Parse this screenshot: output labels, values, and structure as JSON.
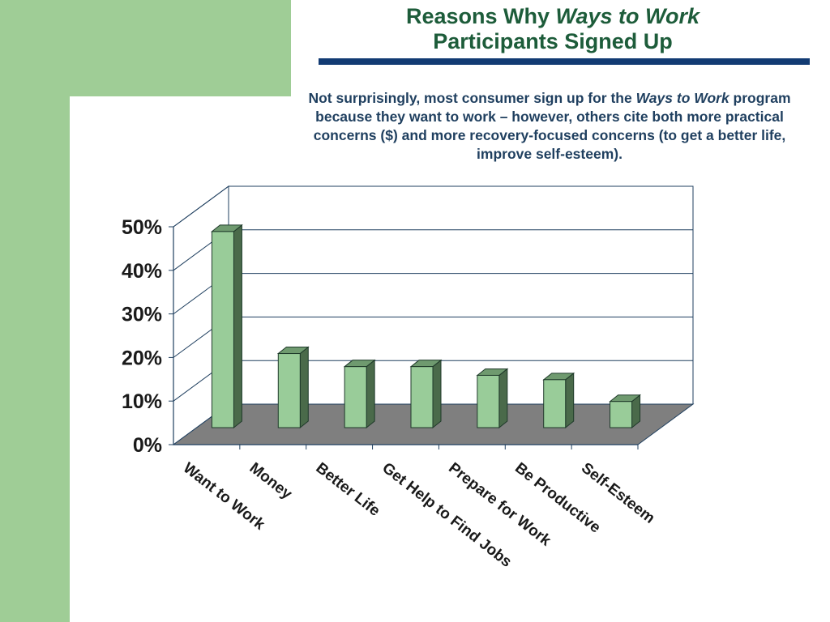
{
  "slide": {
    "title_prefix": "Reasons Why ",
    "title_emphasis": "Ways to Work",
    "title_line2": "Participants Signed Up",
    "subtitle_part1": "Not surprisingly, most consumer sign up for the ",
    "subtitle_emphasis": "Ways to Work",
    "subtitle_part2": " program because they want to work – however, others cite both more practical concerns ($) and more recovery-focused concerns (to get a better life, improve self-esteem)."
  },
  "colors": {
    "band_green": "#9fcd96",
    "title_green": "#1d5c3a",
    "rule_navy": "#123b73",
    "bar_front": "#99cc99",
    "bar_side": "#4a6a4a",
    "bar_top": "#6f9a6f",
    "floor": "#7f7f7f",
    "outline": "#1f3f5f"
  },
  "chart_data": {
    "type": "bar",
    "categories": [
      "Want to Work",
      "Money",
      "Better Life",
      "Get Help to Find Jobs",
      "Prepare for Work",
      "Be Productive",
      "Self-Esteem"
    ],
    "values": [
      45,
      17,
      14,
      14,
      12,
      11,
      6
    ],
    "ylim": [
      0,
      50
    ],
    "yticks": [
      0,
      10,
      20,
      30,
      40,
      50
    ],
    "ytick_labels": [
      "0%",
      "10%",
      "20%",
      "30%",
      "40%",
      "50%"
    ],
    "grid": true,
    "legend": "none",
    "style": "3d"
  }
}
